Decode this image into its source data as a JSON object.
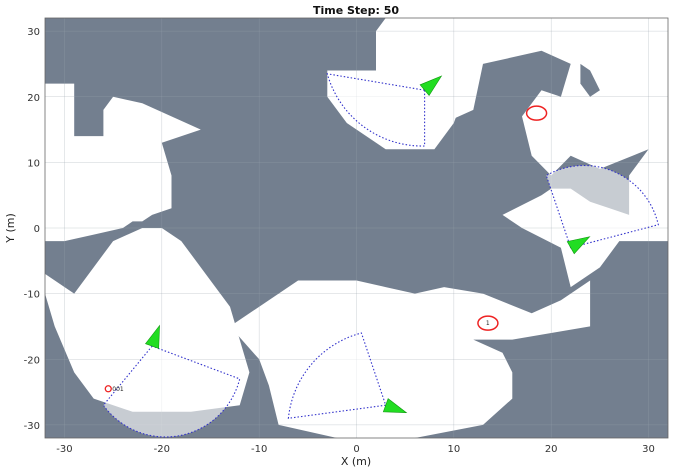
{
  "chart_data": {
    "type": "map",
    "title": "Time Step: 50",
    "xlabel": "X (m)",
    "ylabel": "Y (m)",
    "xlim": [
      -32,
      32
    ],
    "ylim": [
      -32,
      32
    ],
    "xticks": [
      -30,
      -20,
      -10,
      0,
      10,
      20,
      30
    ],
    "yticks": [
      30,
      20,
      10,
      0,
      -10,
      -20,
      -30
    ],
    "grid": true,
    "colors": {
      "unexplored": "#737f8f",
      "explored": "#ffffff",
      "agent": "#22dd22",
      "sensor_range": "#3333cc",
      "target": "#ee2222"
    },
    "explored_regions": [
      [
        [
          -32,
          22
        ],
        [
          -29,
          22
        ],
        [
          -29,
          14
        ],
        [
          -26,
          14
        ],
        [
          -26,
          18
        ],
        [
          -25,
          20
        ],
        [
          -22,
          19
        ],
        [
          -16,
          15
        ],
        [
          -20,
          13
        ],
        [
          -19,
          8
        ],
        [
          -19,
          3
        ],
        [
          -21,
          2
        ],
        [
          -22,
          1
        ],
        [
          -23,
          1
        ],
        [
          -24,
          0
        ],
        [
          -27,
          -1
        ],
        [
          -30,
          -2
        ],
        [
          -32,
          -2
        ]
      ],
      [
        [
          -32,
          -7
        ],
        [
          -29,
          -10
        ],
        [
          -25,
          -2
        ],
        [
          -22,
          0
        ],
        [
          -20,
          0
        ],
        [
          -18,
          -2
        ],
        [
          -15,
          -8
        ],
        [
          -13,
          -12
        ],
        [
          -12,
          -17
        ],
        [
          -11,
          -22
        ],
        [
          -12,
          -27
        ],
        [
          -17,
          -28
        ],
        [
          -23,
          -28
        ],
        [
          -27,
          -26
        ],
        [
          -29,
          -22
        ],
        [
          -31,
          -15
        ],
        [
          -32,
          -10
        ]
      ],
      [
        [
          -13,
          -15
        ],
        [
          -6,
          -8
        ],
        [
          0,
          -8
        ],
        [
          3,
          -9
        ],
        [
          6,
          -10
        ],
        [
          9,
          -9
        ],
        [
          13,
          -10
        ],
        [
          18,
          -13
        ],
        [
          21,
          -11
        ],
        [
          24,
          -8
        ],
        [
          24,
          -15
        ],
        [
          20,
          -16
        ],
        [
          16,
          -17
        ],
        [
          14,
          -17
        ],
        [
          12,
          -17
        ],
        [
          15,
          -19
        ],
        [
          16,
          -22
        ],
        [
          16,
          -26
        ],
        [
          13,
          -30
        ],
        [
          6,
          -32
        ],
        [
          -2,
          -32
        ],
        [
          -8,
          -30
        ],
        [
          -9,
          -24
        ],
        [
          -10,
          -20
        ]
      ],
      [
        [
          2,
          30
        ],
        [
          3,
          32
        ],
        [
          8,
          32
        ],
        [
          14,
          32
        ],
        [
          21,
          32
        ],
        [
          26,
          32
        ],
        [
          32,
          32
        ],
        [
          32,
          -2
        ],
        [
          27,
          -2
        ],
        [
          25,
          -6
        ],
        [
          22,
          -9
        ],
        [
          21,
          -3
        ],
        [
          17,
          0
        ],
        [
          15,
          2
        ],
        [
          19,
          5
        ],
        [
          20,
          6
        ],
        [
          22,
          6
        ],
        [
          24,
          4
        ],
        [
          26,
          3
        ],
        [
          28,
          2
        ],
        [
          28,
          8
        ],
        [
          30,
          12
        ],
        [
          25,
          9
        ],
        [
          22,
          11
        ],
        [
          20,
          8
        ],
        [
          18,
          11
        ],
        [
          17,
          17
        ],
        [
          19,
          21
        ],
        [
          21,
          20
        ],
        [
          22,
          25
        ],
        [
          19,
          27
        ],
        [
          13,
          25
        ],
        [
          12,
          18
        ],
        [
          9,
          16
        ],
        [
          6,
          18
        ],
        [
          4,
          20
        ],
        [
          2,
          24
        ]
      ],
      [
        [
          -3,
          24
        ],
        [
          6,
          24
        ],
        [
          10,
          24
        ],
        [
          11,
          20
        ],
        [
          10,
          16
        ],
        [
          8,
          12
        ],
        [
          3,
          12
        ],
        [
          -1,
          16
        ],
        [
          -3,
          20
        ]
      ]
    ],
    "holes": [
      [
        [
          23,
          25
        ],
        [
          23,
          22
        ],
        [
          24,
          20
        ],
        [
          25,
          21
        ],
        [
          24,
          24
        ]
      ]
    ],
    "agents": [
      {
        "x": 7,
        "y": 21,
        "heading": 40,
        "fov": [
          [
            7,
            21
          ],
          [
            -3,
            23.5
          ],
          [
            7,
            12.5
          ]
        ]
      },
      {
        "x": 22,
        "y": -3,
        "heading": 30,
        "fov": [
          [
            22,
            -3
          ],
          [
            19.5,
            8
          ],
          [
            31,
            0.5
          ]
        ]
      },
      {
        "x": -21,
        "y": -18,
        "heading": 70,
        "fov": [
          [
            -21,
            -18
          ],
          [
            -26,
            -27
          ],
          [
            -12,
            -23
          ]
        ]
      },
      {
        "x": 3,
        "y": -27,
        "heading": -20,
        "fov": [
          [
            3,
            -27
          ],
          [
            -7,
            -29
          ],
          [
            0.5,
            -16
          ]
        ]
      }
    ],
    "targets": [
      {
        "id": "",
        "x": 18.5,
        "y": 17.5
      },
      {
        "id": "1",
        "x": 13.5,
        "y": -14.5
      },
      {
        "id": "001",
        "x": -25.5,
        "y": -24.5
      }
    ]
  }
}
